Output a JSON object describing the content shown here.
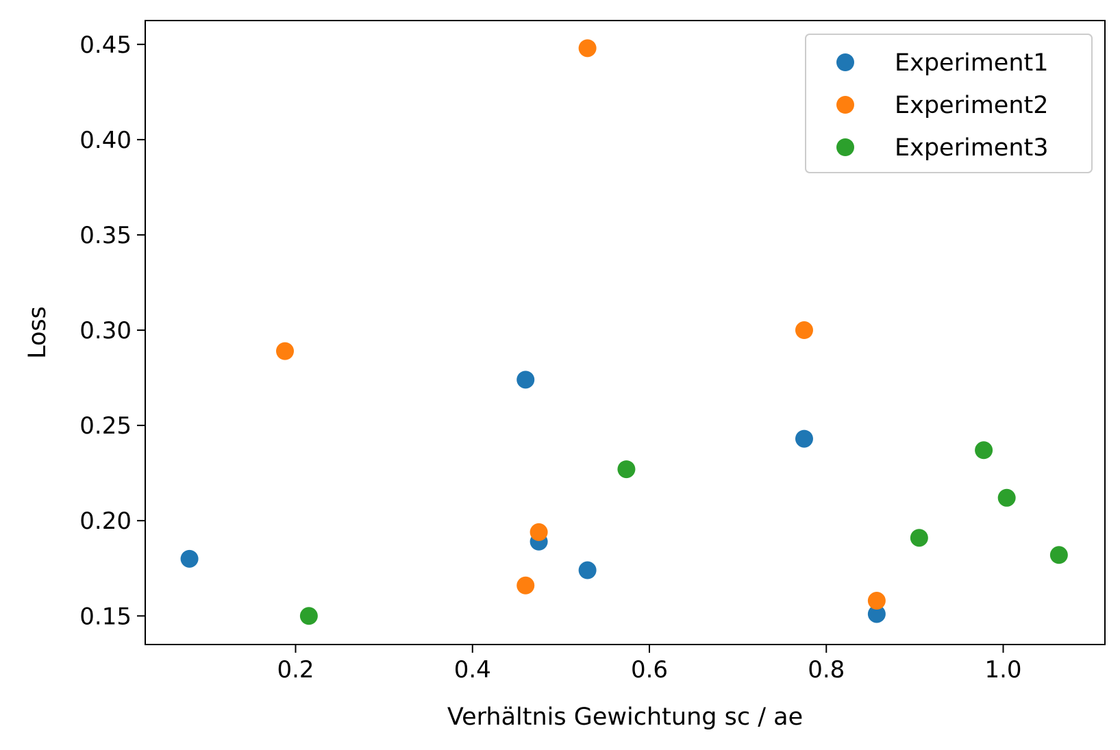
{
  "chart_data": {
    "type": "scatter",
    "title": "",
    "xlabel": "Verhältnis Gewichtung sc / ae",
    "ylabel": "Loss",
    "xlim": [
      0.03,
      1.115
    ],
    "ylim": [
      0.135,
      0.4625
    ],
    "x_ticks": [
      0.2,
      0.4,
      0.6,
      0.8,
      1.0
    ],
    "x_tick_labels": [
      "0.2",
      "0.4",
      "0.6",
      "0.8",
      "1.0"
    ],
    "y_ticks": [
      0.15,
      0.2,
      0.25,
      0.3,
      0.35,
      0.4,
      0.45
    ],
    "y_tick_labels": [
      "0.15",
      "0.20",
      "0.25",
      "0.30",
      "0.35",
      "0.40",
      "0.45"
    ],
    "grid": false,
    "legend_position": "top-right",
    "series": [
      {
        "name": "Experiment1",
        "color": "#1f77b4",
        "points": [
          {
            "x": 0.08,
            "y": 0.18
          },
          {
            "x": 0.46,
            "y": 0.274
          },
          {
            "x": 0.475,
            "y": 0.189
          },
          {
            "x": 0.53,
            "y": 0.174
          },
          {
            "x": 0.775,
            "y": 0.243
          },
          {
            "x": 0.857,
            "y": 0.151
          }
        ]
      },
      {
        "name": "Experiment2",
        "color": "#ff7f0e",
        "points": [
          {
            "x": 0.188,
            "y": 0.289
          },
          {
            "x": 0.46,
            "y": 0.166
          },
          {
            "x": 0.475,
            "y": 0.194
          },
          {
            "x": 0.53,
            "y": 0.448
          },
          {
            "x": 0.775,
            "y": 0.3
          },
          {
            "x": 0.857,
            "y": 0.158
          }
        ]
      },
      {
        "name": "Experiment3",
        "color": "#2ca02c",
        "points": [
          {
            "x": 0.215,
            "y": 0.15
          },
          {
            "x": 0.574,
            "y": 0.227
          },
          {
            "x": 0.905,
            "y": 0.191
          },
          {
            "x": 0.978,
            "y": 0.237
          },
          {
            "x": 1.004,
            "y": 0.212
          },
          {
            "x": 1.063,
            "y": 0.182
          }
        ]
      }
    ]
  }
}
